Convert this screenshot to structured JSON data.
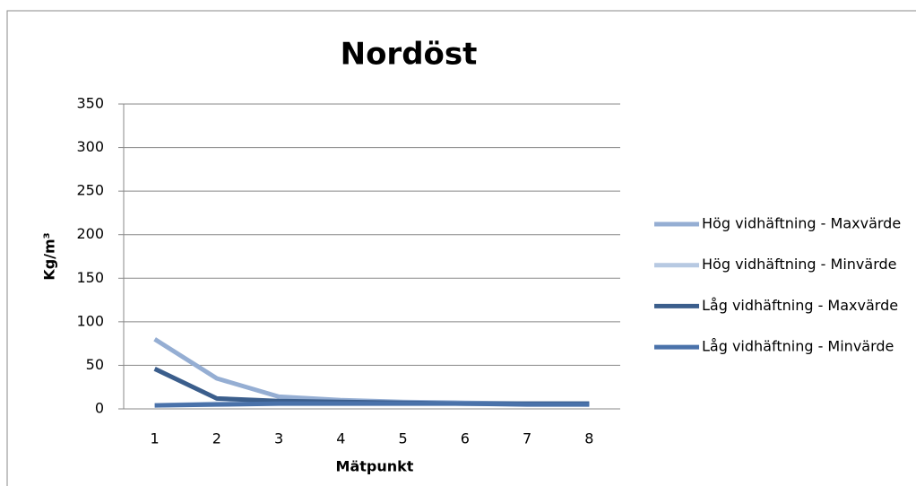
{
  "chart_data": {
    "type": "line",
    "title": "Nordöst",
    "x_label": "Mätpunkt",
    "y_label": "Kg/m³",
    "categories": [
      "1",
      "2",
      "3",
      "4",
      "5",
      "6",
      "7",
      "8"
    ],
    "series": [
      {
        "name": "Hög vidhäftning - Maxvärde",
        "color": "#95aed3",
        "values": [
          80,
          35,
          14,
          10,
          8,
          7,
          6,
          6
        ]
      },
      {
        "name": "Hög vidhäftning - Minvärde",
        "color": "#b7c9e2",
        "values": [
          4,
          6,
          7,
          7,
          7,
          6,
          6,
          5
        ]
      },
      {
        "name": "Låg vidhäftning - Maxvärde",
        "color": "#3b5e8c",
        "values": [
          46,
          12,
          9,
          8,
          7,
          6,
          6,
          6
        ]
      },
      {
        "name": "Låg vidhäftning - Minvärde",
        "color": "#4a72aa",
        "values": [
          4,
          5,
          6,
          6,
          6,
          6,
          5,
          5
        ]
      }
    ],
    "ylim": [
      0,
      350
    ],
    "yticks": [
      0,
      50,
      100,
      150,
      200,
      250,
      300,
      350
    ],
    "grid": true,
    "legend": "right"
  }
}
